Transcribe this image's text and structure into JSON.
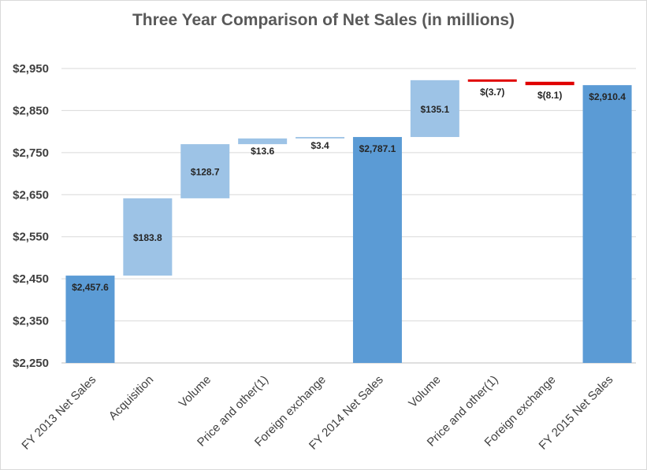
{
  "chart_data": {
    "type": "bar",
    "subtype": "waterfall",
    "title": "Three Year Comparison of Net Sales (in millions)",
    "xlabel": "",
    "ylabel": "",
    "ylim": [
      2250,
      2950
    ],
    "y_ticks": [
      2250,
      2350,
      2450,
      2550,
      2650,
      2750,
      2850,
      2950
    ],
    "y_tick_labels": [
      "$2,250",
      "$2,350",
      "$2,450",
      "$2,550",
      "$2,650",
      "$2,750",
      "$2,850",
      "$2,950"
    ],
    "grid": true,
    "legend": "none",
    "categories": [
      "FY 2013 Net Sales",
      "Acquisition",
      "Volume",
      "Price and other(1)",
      "Foreign exchange",
      "FY 2014 Net Sales",
      "Volume",
      "Price and other(1)",
      "Foreign exchange",
      "FY 2015 Net Sales"
    ],
    "bars": [
      {
        "kind": "total",
        "start": 2250,
        "end": 2457.6,
        "label": "$2,457.6"
      },
      {
        "kind": "increase",
        "start": 2457.6,
        "end": 2641.4,
        "label": "$183.8"
      },
      {
        "kind": "increase",
        "start": 2641.4,
        "end": 2770.1,
        "label": "$128.7"
      },
      {
        "kind": "increase",
        "start": 2770.1,
        "end": 2783.7,
        "label": "$13.6"
      },
      {
        "kind": "increase",
        "start": 2783.7,
        "end": 2787.1,
        "label": "$3.4"
      },
      {
        "kind": "total",
        "start": 2250,
        "end": 2787.1,
        "label": "$2,787.1"
      },
      {
        "kind": "increase",
        "start": 2787.1,
        "end": 2922.2,
        "label": "$135.1"
      },
      {
        "kind": "decrease",
        "start": 2922.2,
        "end": 2918.5,
        "label": "$(3.7)"
      },
      {
        "kind": "decrease",
        "start": 2918.5,
        "end": 2910.4,
        "label": "$(8.1)"
      },
      {
        "kind": "total",
        "start": 2250,
        "end": 2910.4,
        "label": "$2,910.4"
      }
    ],
    "colors": {
      "total": "#5b9bd5",
      "increase": "#9dc3e6",
      "decrease": "#e00000",
      "grid": "#d9d9d9",
      "axis": "#bfbfbf"
    }
  }
}
